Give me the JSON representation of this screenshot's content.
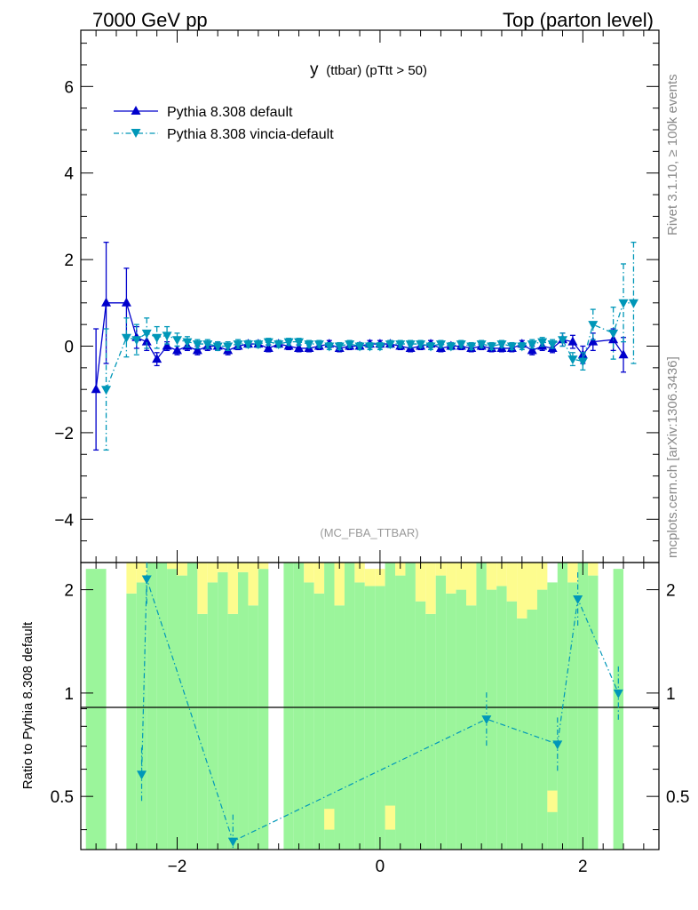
{
  "header": {
    "left": "7000 GeV pp",
    "right": "Top (parton level)"
  },
  "side_labels": {
    "rivet": "Rivet 3.1.10, ≥ 100k events",
    "mcplots": "mcplots.cern.ch [arXiv:1306.3436]"
  },
  "main_plot": {
    "title_main": "y",
    "title_sub": "(ttbar) (pTtt > 50)",
    "watermark": "(MC_FBA_TTBAR)",
    "legend": [
      {
        "label": "Pythia 8.308 default",
        "color": "#0000cc",
        "marker": "triangle-up",
        "dash": "solid"
      },
      {
        "label": "Pythia 8.308 vincia-default",
        "color": "#0097b8",
        "marker": "triangle-down",
        "dash": "dash-dot"
      }
    ],
    "y_ticks": [
      "−4",
      "−2",
      "0",
      "2",
      "4",
      "6"
    ]
  },
  "ratio_plot": {
    "ylabel": "Ratio to Pythia 8.308 default",
    "y_ticks": [
      "0.5",
      "1",
      "2"
    ],
    "x_ticks": [
      "−2",
      "0",
      "2"
    ]
  },
  "chart_data": {
    "type": "line",
    "x_range": [
      -2.95,
      2.75
    ],
    "ylim_main": [
      -5,
      7.3
    ],
    "ylim_ratio": [
      0.35,
      2.4
    ],
    "ratio_scale": "log",
    "grid": false,
    "legend_placement": "top-left",
    "x": [
      -2.8,
      -2.7,
      -2.5,
      -2.4,
      -2.3,
      -2.2,
      -2.1,
      -2.0,
      -1.9,
      -1.8,
      -1.7,
      -1.6,
      -1.5,
      -1.4,
      -1.3,
      -1.2,
      -1.1,
      -1.0,
      -0.9,
      -0.8,
      -0.7,
      -0.6,
      -0.5,
      -0.4,
      -0.3,
      -0.2,
      -0.1,
      0.0,
      0.1,
      0.2,
      0.3,
      0.4,
      0.5,
      0.6,
      0.7,
      0.8,
      0.9,
      1.0,
      1.1,
      1.2,
      1.3,
      1.4,
      1.5,
      1.6,
      1.7,
      1.8,
      1.9,
      2.0,
      2.1,
      2.3,
      2.4,
      2.5
    ],
    "series": [
      {
        "name": "Pythia 8.308 default",
        "color": "#0000cc",
        "values": [
          -1.0,
          1.0,
          1.0,
          0.2,
          0.1,
          -0.3,
          0.0,
          -0.1,
          0.0,
          -0.1,
          0.0,
          0.0,
          -0.1,
          0.0,
          0.05,
          0.05,
          -0.05,
          0.05,
          0.0,
          -0.05,
          -0.05,
          0.0,
          0.05,
          -0.05,
          0.0,
          0.0,
          0.05,
          0.05,
          0.05,
          0.0,
          -0.05,
          0.0,
          0.05,
          -0.05,
          0.0,
          0.0,
          -0.05,
          0.0,
          -0.05,
          -0.05,
          -0.05,
          0.05,
          -0.1,
          0.0,
          -0.05,
          0.15,
          0.1,
          -0.2,
          0.1,
          0.15,
          -0.2,
          null
        ],
        "errors": [
          1.4,
          1.4,
          0.8,
          0.25,
          0.2,
          0.15,
          0.1,
          0.1,
          0.1,
          0.1,
          0.1,
          0.1,
          0.1,
          0.08,
          0.08,
          0.08,
          0.08,
          0.08,
          0.08,
          0.08,
          0.08,
          0.08,
          0.08,
          0.08,
          0.08,
          0.08,
          0.08,
          0.08,
          0.08,
          0.08,
          0.08,
          0.08,
          0.08,
          0.08,
          0.08,
          0.08,
          0.08,
          0.08,
          0.08,
          0.08,
          0.08,
          0.08,
          0.1,
          0.1,
          0.1,
          0.15,
          0.15,
          0.2,
          0.2,
          0.25,
          0.4,
          null
        ]
      },
      {
        "name": "Pythia 8.308 vincia-default",
        "color": "#0097b8",
        "values": [
          null,
          -1.0,
          0.2,
          0.15,
          0.3,
          0.2,
          0.25,
          0.15,
          0.1,
          0.05,
          0.05,
          0.0,
          0.0,
          0.05,
          0.05,
          0.05,
          0.1,
          0.05,
          0.1,
          0.1,
          0.05,
          0.05,
          0.0,
          0.0,
          0.05,
          0.0,
          0.0,
          0.0,
          0.05,
          0.05,
          0.05,
          0.05,
          0.0,
          0.05,
          0.0,
          0.05,
          0.0,
          0.05,
          0.0,
          0.05,
          0.0,
          0.0,
          0.05,
          0.1,
          0.05,
          0.15,
          -0.3,
          -0.35,
          0.5,
          0.3,
          1.0,
          1.0
        ],
        "errors": [
          null,
          1.4,
          0.45,
          0.35,
          0.35,
          0.25,
          0.2,
          0.15,
          0.12,
          0.1,
          0.1,
          0.1,
          0.1,
          0.1,
          0.08,
          0.08,
          0.08,
          0.08,
          0.08,
          0.08,
          0.08,
          0.08,
          0.08,
          0.08,
          0.08,
          0.08,
          0.08,
          0.08,
          0.08,
          0.08,
          0.08,
          0.08,
          0.08,
          0.08,
          0.08,
          0.08,
          0.08,
          0.08,
          0.08,
          0.08,
          0.08,
          0.08,
          0.1,
          0.1,
          0.1,
          0.15,
          0.15,
          0.2,
          0.35,
          0.6,
          0.9,
          1.4
        ]
      }
    ],
    "ratio_points": [
      {
        "x": -2.35,
        "y": 0.58
      },
      {
        "x": -2.3,
        "y": 2.15
      },
      {
        "x": -1.45,
        "y": 0.37
      },
      {
        "x": 1.05,
        "y": 0.84
      },
      {
        "x": 1.75,
        "y": 0.71
      },
      {
        "x": 1.95,
        "y": 1.88
      },
      {
        "x": 2.35,
        "y": 1.0
      }
    ],
    "ratio_bands": [
      {
        "x0": -2.9,
        "x1": -2.7,
        "green": [
          0.35,
          2.3
        ],
        "yellow": null
      },
      {
        "x0": -2.5,
        "x1": -2.4,
        "green": [
          0.35,
          1.95
        ],
        "yellow": [
          1.95,
          2.4
        ]
      },
      {
        "x0": -2.4,
        "x1": -2.3,
        "green": [
          0.35,
          2.1
        ],
        "yellow": [
          2.1,
          2.4
        ]
      },
      {
        "x0": -2.3,
        "x1": -2.2,
        "green": [
          0.35,
          2.4
        ],
        "yellow": null
      },
      {
        "x0": -2.2,
        "x1": -2.1,
        "green": [
          0.35,
          2.4
        ],
        "yellow": null
      },
      {
        "x0": -2.1,
        "x1": -2.0,
        "green": [
          0.35,
          2.3
        ],
        "yellow": [
          2.3,
          2.4
        ]
      },
      {
        "x0": -2.0,
        "x1": -1.9,
        "green": [
          0.35,
          2.2
        ],
        "yellow": [
          2.2,
          2.4
        ]
      },
      {
        "x0": -1.9,
        "x1": -1.8,
        "green": [
          0.35,
          2.4
        ],
        "yellow": null
      },
      {
        "x0": -1.8,
        "x1": -1.7,
        "green": [
          0.35,
          1.7
        ],
        "yellow": [
          1.7,
          2.4
        ]
      },
      {
        "x0": -1.7,
        "x1": -1.6,
        "green": [
          0.35,
          2.1
        ],
        "yellow": [
          2.1,
          2.4
        ]
      },
      {
        "x0": -1.6,
        "x1": -1.5,
        "green": [
          0.35,
          2.25
        ],
        "yellow": [
          2.25,
          2.4
        ]
      },
      {
        "x0": -1.5,
        "x1": -1.4,
        "green": [
          0.35,
          1.7
        ],
        "yellow": [
          1.7,
          2.4
        ]
      },
      {
        "x0": -1.4,
        "x1": -1.3,
        "green": [
          0.35,
          2.25
        ],
        "yellow": [
          2.25,
          2.4
        ]
      },
      {
        "x0": -1.3,
        "x1": -1.2,
        "green": [
          0.35,
          1.8
        ],
        "yellow": [
          1.8,
          2.4
        ]
      },
      {
        "x0": -1.2,
        "x1": -1.1,
        "green": [
          0.35,
          2.3
        ],
        "yellow": [
          2.3,
          2.4
        ]
      },
      {
        "x0": -0.95,
        "x1": -0.85,
        "green": [
          0.35,
          2.4
        ],
        "yellow": null
      },
      {
        "x0": -0.85,
        "x1": -0.75,
        "green": [
          0.35,
          2.4
        ],
        "yellow": null
      },
      {
        "x0": -0.75,
        "x1": -0.65,
        "green": [
          0.35,
          2.1
        ],
        "yellow": [
          2.1,
          2.4
        ]
      },
      {
        "x0": -0.65,
        "x1": -0.55,
        "green": [
          0.35,
          1.95
        ],
        "yellow": [
          1.95,
          2.4
        ]
      },
      {
        "x0": -0.55,
        "x1": -0.45,
        "green": [
          0.35,
          2.4
        ],
        "yellow": [
          0.4,
          0.46
        ]
      },
      {
        "x0": -0.45,
        "x1": -0.35,
        "green": [
          0.35,
          1.8
        ],
        "yellow": [
          1.8,
          2.4
        ]
      },
      {
        "x0": -0.35,
        "x1": -0.25,
        "green": [
          0.35,
          2.4
        ],
        "yellow": null
      },
      {
        "x0": -0.25,
        "x1": -0.15,
        "green": [
          0.35,
          2.1
        ],
        "yellow": [
          2.1,
          2.4
        ]
      },
      {
        "x0": -0.15,
        "x1": -0.05,
        "green": [
          0.35,
          2.05
        ],
        "yellow": [
          2.05,
          2.3
        ]
      },
      {
        "x0": -0.05,
        "x1": 0.05,
        "green": [
          0.35,
          2.05
        ],
        "yellow": [
          2.05,
          2.3
        ]
      },
      {
        "x0": 0.05,
        "x1": 0.15,
        "green": [
          0.35,
          2.4
        ],
        "yellow": [
          0.4,
          0.47
        ]
      },
      {
        "x0": 0.15,
        "x1": 0.25,
        "green": [
          0.35,
          2.2
        ],
        "yellow": [
          2.2,
          2.4
        ]
      },
      {
        "x0": 0.25,
        "x1": 0.35,
        "green": [
          0.35,
          2.4
        ],
        "yellow": null
      },
      {
        "x0": 0.35,
        "x1": 0.45,
        "green": [
          0.35,
          1.85
        ],
        "yellow": [
          1.85,
          2.4
        ]
      },
      {
        "x0": 0.45,
        "x1": 0.55,
        "green": [
          0.35,
          1.7
        ],
        "yellow": [
          1.7,
          2.4
        ]
      },
      {
        "x0": 0.55,
        "x1": 0.65,
        "green": [
          0.35,
          2.2
        ],
        "yellow": [
          2.2,
          2.4
        ]
      },
      {
        "x0": 0.65,
        "x1": 0.75,
        "green": [
          0.35,
          1.95
        ],
        "yellow": [
          1.95,
          2.4
        ]
      },
      {
        "x0": 0.75,
        "x1": 0.85,
        "green": [
          0.35,
          2.0
        ],
        "yellow": [
          2.0,
          2.4
        ]
      },
      {
        "x0": 0.85,
        "x1": 0.95,
        "green": [
          0.35,
          1.8
        ],
        "yellow": [
          1.8,
          2.4
        ]
      },
      {
        "x0": 0.95,
        "x1": 1.05,
        "green": [
          0.35,
          2.4
        ],
        "yellow": null
      },
      {
        "x0": 1.05,
        "x1": 1.15,
        "green": [
          0.35,
          2.0
        ],
        "yellow": [
          2.0,
          2.4
        ]
      },
      {
        "x0": 1.15,
        "x1": 1.25,
        "green": [
          0.35,
          2.05
        ],
        "yellow": [
          2.05,
          2.4
        ]
      },
      {
        "x0": 1.25,
        "x1": 1.35,
        "green": [
          0.35,
          1.85
        ],
        "yellow": [
          1.85,
          2.4
        ]
      },
      {
        "x0": 1.35,
        "x1": 1.45,
        "green": [
          0.35,
          1.65
        ],
        "yellow": [
          1.65,
          2.4
        ]
      },
      {
        "x0": 1.45,
        "x1": 1.55,
        "green": [
          0.35,
          1.75
        ],
        "yellow": [
          1.75,
          2.4
        ]
      },
      {
        "x0": 1.55,
        "x1": 1.65,
        "green": [
          0.35,
          2.0
        ],
        "yellow": [
          2.0,
          2.4
        ]
      },
      {
        "x0": 1.65,
        "x1": 1.75,
        "green": [
          0.35,
          2.1
        ],
        "yellow": [
          0.45,
          0.52
        ]
      },
      {
        "x0": 1.75,
        "x1": 1.85,
        "green": [
          0.35,
          2.4
        ],
        "yellow": null
      },
      {
        "x0": 1.85,
        "x1": 1.95,
        "green": [
          0.35,
          2.1
        ],
        "yellow": [
          2.1,
          2.4
        ]
      },
      {
        "x0": 1.95,
        "x1": 2.05,
        "green": [
          0.35,
          2.4
        ],
        "yellow": null
      },
      {
        "x0": 2.05,
        "x1": 2.15,
        "green": [
          0.35,
          2.2
        ],
        "yellow": [
          2.2,
          2.4
        ]
      },
      {
        "x0": 2.3,
        "x1": 2.4,
        "green": [
          0.35,
          2.3
        ],
        "yellow": null
      }
    ]
  }
}
